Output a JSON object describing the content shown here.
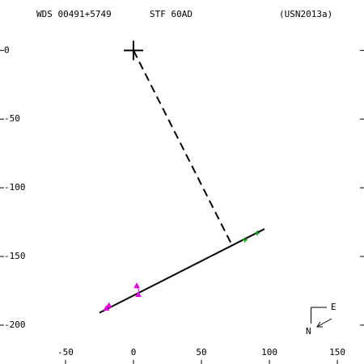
{
  "chart_data": {
    "type": "scatter",
    "title": "WDS 00491+5749",
    "subtitle": "STF  60AD",
    "reference": "(USN2013a)",
    "xlim": [
      -98.2,
      169.6
    ],
    "ylim": [
      -228.3,
      36.7
    ],
    "xticks": [
      -50,
      0,
      50,
      100,
      150
    ],
    "yticks": [
      0,
      -50,
      -100,
      -150,
      -200
    ],
    "grid": false,
    "compass": {
      "east": "E",
      "north": "N"
    },
    "series": [
      {
        "style": "cross",
        "color": "#000000",
        "x": [
          0
        ],
        "y": [
          0
        ]
      },
      {
        "style": "line",
        "color": "#000000",
        "x": [
          -25,
          96.4
        ],
        "y": [
          -191,
          -130
        ]
      },
      {
        "style": "dashed",
        "color": "#000000",
        "x": [
          0,
          72.6
        ],
        "y": [
          0,
          -142
        ]
      },
      {
        "style": "plus",
        "color": "#00a000",
        "x": [
          82,
          91
        ],
        "y": [
          -138,
          -133
        ]
      },
      {
        "style": "triangle",
        "color": "#e000e0",
        "x": [
          2.4,
          3.6,
          -18,
          -20
        ],
        "y": [
          -171.6,
          -178,
          -186,
          -188
        ]
      }
    ]
  }
}
